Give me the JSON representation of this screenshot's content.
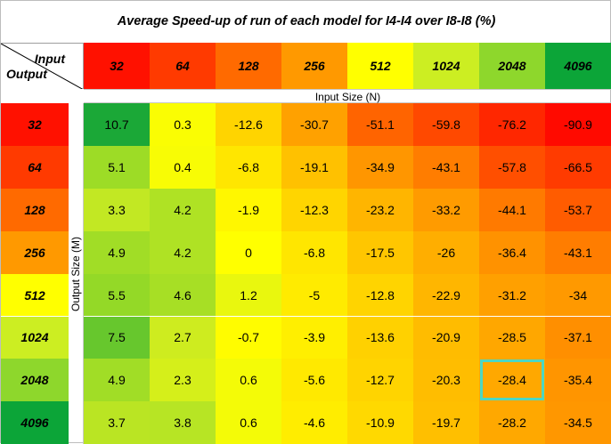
{
  "chart_data": {
    "type": "heatmap",
    "title": "Average Speed-up of run of each model for I4-I4 over I8-I8 (%)",
    "corner_labels": {
      "x": "Input",
      "y": "Output"
    },
    "xlabel": "Input Size (N)",
    "ylabel": "Output Size (M)",
    "x_categories": [
      "32",
      "64",
      "128",
      "256",
      "512",
      "1024",
      "2048",
      "4096"
    ],
    "y_categories": [
      "32",
      "64",
      "128",
      "256",
      "512",
      "1024",
      "2048",
      "4096"
    ],
    "values": [
      [
        10.7,
        0.3,
        -12.6,
        -30.7,
        -51.1,
        -59.8,
        -76.2,
        -90.9
      ],
      [
        5.1,
        0.4,
        -6.8,
        -19.1,
        -34.9,
        -43.1,
        -57.8,
        -66.5
      ],
      [
        3.3,
        4.2,
        -1.9,
        -12.3,
        -23.2,
        -33.2,
        -44.1,
        -53.7
      ],
      [
        4.9,
        4.2,
        0,
        -6.8,
        -17.5,
        -26,
        -36.4,
        -43.1
      ],
      [
        5.5,
        4.6,
        1.2,
        -5,
        -12.8,
        -22.9,
        -31.2,
        -34
      ],
      [
        7.5,
        2.7,
        -0.7,
        -3.9,
        -13.6,
        -20.9,
        -28.5,
        -37.1
      ],
      [
        4.9,
        2.3,
        0.6,
        -5.6,
        -12.7,
        -20.3,
        -28.4,
        -35.4
      ],
      [
        3.7,
        3.8,
        0.6,
        -4.6,
        -10.9,
        -19.7,
        -28.2,
        -34.5
      ]
    ],
    "header_colors": [
      "#ff1100",
      "#ff3a00",
      "#ff6a00",
      "#ff9900",
      "#ffff00",
      "#ccee22",
      "#8ed72c",
      "#0ca538"
    ],
    "highlighted_cell": {
      "row": 6,
      "col": 6,
      "color": "#4dd7c2"
    }
  }
}
